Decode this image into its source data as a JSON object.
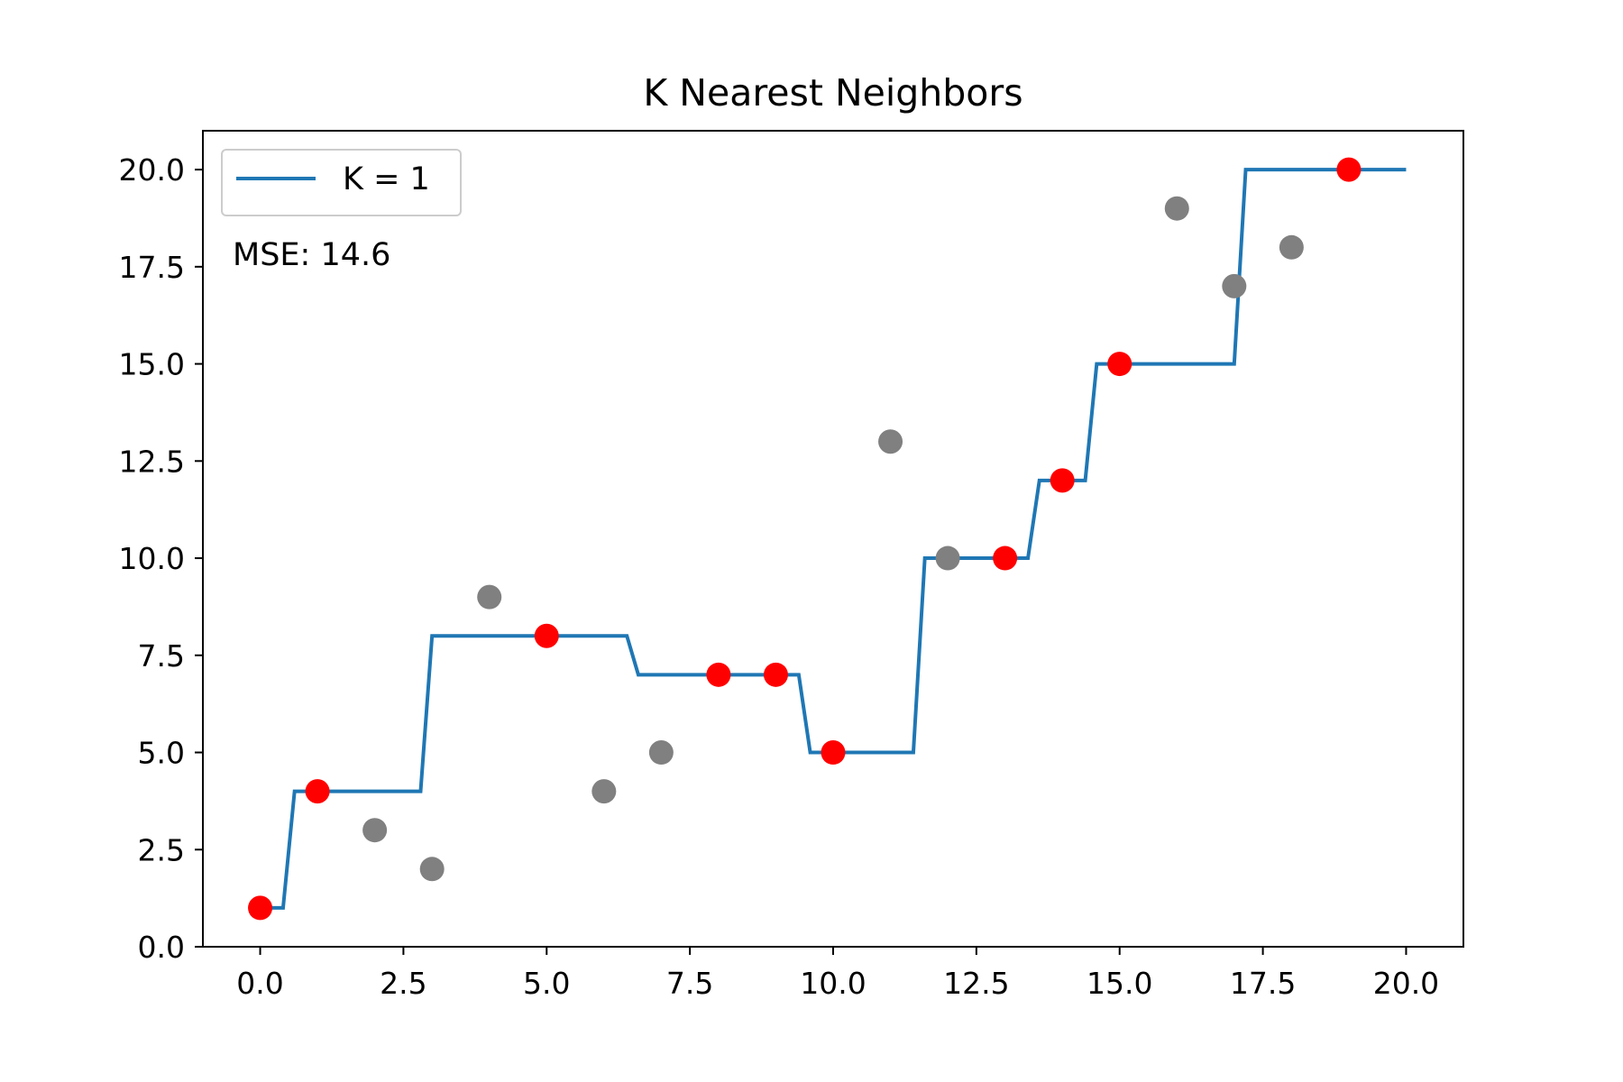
{
  "chart_data": {
    "type": "line",
    "title": "K Nearest Neighbors",
    "xlabel": "",
    "ylabel": "",
    "xlim": [
      -1,
      21
    ],
    "ylim": [
      0,
      21
    ],
    "xticks": [
      0,
      2.5,
      5,
      7.5,
      10,
      12.5,
      15,
      17.5,
      20
    ],
    "yticks": [
      0,
      2.5,
      5,
      7.5,
      10,
      12.5,
      15,
      17.5,
      20
    ],
    "tick_labels_x": [
      "0.0",
      "2.5",
      "5.0",
      "7.5",
      "10.0",
      "12.5",
      "15.0",
      "17.5",
      "20.0"
    ],
    "tick_labels_y": [
      "0.0",
      "2.5",
      "5.0",
      "7.5",
      "10.0",
      "12.5",
      "15.0",
      "17.5",
      "20.0"
    ],
    "grid": false,
    "legend_position": "top-left",
    "annotation": "MSE: 14.6",
    "series": [
      {
        "name": "K = 1",
        "type": "line",
        "color": "#1f77b4",
        "x": [
          0,
          0.4,
          0.6,
          2.8,
          3.0,
          6.4,
          6.6,
          9.4,
          9.6,
          11.4,
          11.6,
          13.4,
          13.6,
          14.4,
          14.6,
          17.0,
          17.2,
          20.0
        ],
        "y": [
          1,
          1,
          4,
          4,
          8,
          8,
          7,
          7,
          5,
          5,
          10,
          10,
          12,
          12,
          15,
          15,
          20,
          20
        ]
      },
      {
        "type": "scatter",
        "color": "#ff0000",
        "x": [
          0,
          1,
          5,
          8,
          9,
          10,
          13,
          14,
          15,
          19
        ],
        "y": [
          1,
          4,
          8,
          7,
          7,
          5,
          10,
          12,
          15,
          20
        ]
      },
      {
        "type": "scatter",
        "color": "#808080",
        "x": [
          2,
          3,
          4,
          6,
          7,
          11,
          12,
          16,
          17,
          18
        ],
        "y": [
          3,
          2,
          9,
          4,
          5,
          13,
          10,
          19,
          17,
          18
        ]
      }
    ]
  }
}
